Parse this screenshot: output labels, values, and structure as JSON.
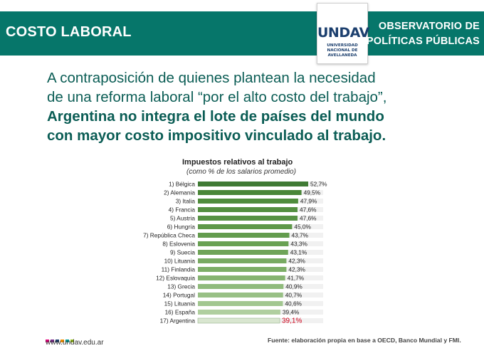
{
  "header": {
    "section_title": "COSTO LABORAL",
    "observatorio_line1": "OBSERVATORIO DE",
    "observatorio_line2": "POLÍTICAS PÚBLICAS",
    "logo_text": "UNDAV",
    "logo_sub1": "UNIVERSIDAD",
    "logo_sub2": "NACIONAL DE",
    "logo_sub3": "AVELLANEDA"
  },
  "headline": {
    "line1": "A contraposición de quienes plantean la necesidad",
    "line2": "de una reforma laboral “por el alto costo del trabajo”,",
    "line3": "Argentina no integra el lote de países del mundo",
    "line4": "con mayor costo impositivo vinculado al trabajo."
  },
  "chart_data": {
    "type": "bar",
    "orientation": "horizontal",
    "title": "Impuestos relativos al trabajo",
    "subtitle": "(como % de los salarios promedio)",
    "categories": [
      "1) Bélgica",
      "2) Alemania",
      "3) Italia",
      "4) Francia",
      "5) Austria",
      "6) Hungría",
      "7) República Checa",
      "8) Eslovenia",
      "9) Suecia",
      "10) Lituania",
      "11) Finlandia",
      "12) Eslovaquia",
      "13) Grecia",
      "14) Portugal",
      "15) Lituania",
      "16) España",
      "17) Argentina"
    ],
    "values": [
      52.7,
      49.5,
      47.9,
      47.6,
      47.6,
      45.0,
      43.7,
      43.3,
      43.1,
      42.3,
      42.3,
      41.7,
      40.9,
      40.7,
      40.6,
      39.4,
      39.1
    ],
    "value_labels": [
      "52,7%",
      "49,5%",
      "47,9%",
      "47,6%",
      "47,6%",
      "45,0%",
      "43,7%",
      "43,3%",
      "43,1%",
      "42,3%",
      "42,3%",
      "41,7%",
      "40,9%",
      "40,7%",
      "40,6%",
      "39,4%",
      "39,1%"
    ],
    "highlight_category": "17) Argentina",
    "highlight_color": "#d0021b",
    "bar_colors": [
      "#3f7a34",
      "#4a8638",
      "#4f8c3c",
      "#548f40",
      "#579244",
      "#5e9849",
      "#639c4e",
      "#69a153",
      "#6fa458",
      "#78aa62",
      "#7dae67",
      "#86b471",
      "#90bb7c",
      "#98c085",
      "#a2c790",
      "#b0cf9f",
      "#d9e6d0"
    ]
  },
  "footer": {
    "url": "www.undav.edu.ar",
    "source": "Fuente: elaboración propia en base a OECD, Banco Mundial y FMI.",
    "dot_colors": [
      "#e4007c",
      "#7b2d8e",
      "#1c3f6e",
      "#f29100",
      "#00a19a",
      "#9ac31c"
    ]
  },
  "colors": {
    "brand_green": "#06766a",
    "headline_green": "#0b5d55"
  }
}
